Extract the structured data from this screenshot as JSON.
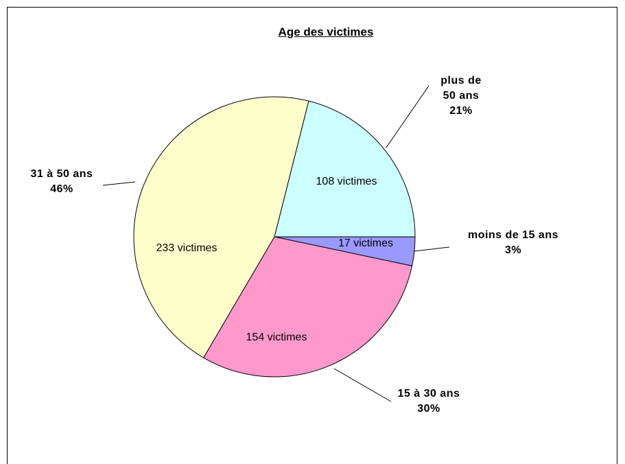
{
  "chart_data": {
    "type": "pie",
    "title": "Age des victimes",
    "categories": [
      "plus de 50 ans",
      "moins de 15 ans",
      "15 à 30 ans",
      "31 à 50 ans"
    ],
    "values": [
      108,
      17,
      154,
      233
    ],
    "value_labels": [
      "108 victimes",
      "17 victimes",
      "154 victimes",
      "233 victimes"
    ],
    "percent_labels": [
      "21%",
      "3%",
      "30%",
      "46%"
    ],
    "colors": [
      "#ccffff",
      "#9999ff",
      "#ff99cc",
      "#ffffcc"
    ]
  }
}
